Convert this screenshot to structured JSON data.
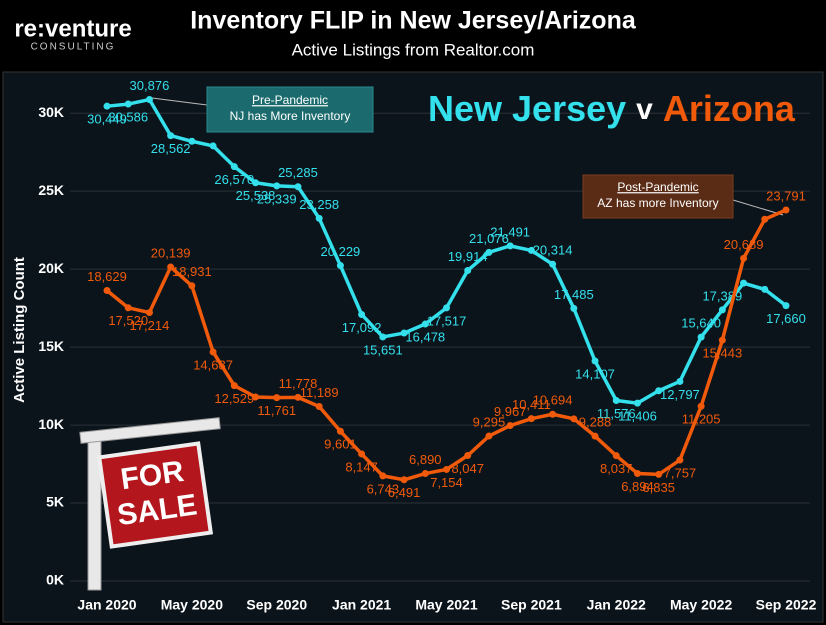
{
  "logo": {
    "name": "re:venture",
    "tagline": "CONSULTING"
  },
  "sign": [
    "FOR",
    "SALE"
  ],
  "chart_data": {
    "type": "line",
    "title": "Inventory FLIP in New Jersey/Arizona",
    "subtitle": "Active Listings from Realtor.com",
    "ylabel": "Active Listing Count",
    "legend_joiner": "v",
    "categories": [
      "Jan 2020",
      null,
      null,
      null,
      "May 2020",
      null,
      null,
      null,
      "Sep 2020",
      null,
      null,
      null,
      "Jan 2021",
      null,
      null,
      null,
      "May 2021",
      null,
      null,
      null,
      "Sep 2021",
      null,
      null,
      null,
      "Jan 2022",
      null,
      null,
      null,
      "May 2022",
      null,
      null,
      null,
      "Sep 2022"
    ],
    "ylim": [
      0,
      32000
    ],
    "yticks": [
      {
        "value": 0,
        "label": "0K"
      },
      {
        "value": 5000,
        "label": "5K"
      },
      {
        "value": 10000,
        "label": "10K"
      },
      {
        "value": 15000,
        "label": "15K"
      },
      {
        "value": 20000,
        "label": "20K"
      },
      {
        "value": 25000,
        "label": "25K"
      },
      {
        "value": 30000,
        "label": "30K"
      }
    ],
    "grid": true,
    "series": [
      {
        "name": "New Jersey",
        "color": "#33e0ec",
        "values": [
          30449,
          30586,
          30876,
          28562,
          28200,
          27900,
          26570,
          25538,
          25339,
          25285,
          23258,
          20229,
          17092,
          15651,
          15900,
          16478,
          17517,
          19914,
          21076,
          21491,
          21200,
          20314,
          17485,
          14107,
          11576,
          11406,
          12200,
          12797,
          15640,
          17389,
          19100,
          18700,
          17660
        ],
        "value_labels": [
          "30,449",
          "30,586",
          "30,876",
          "28,562",
          null,
          null,
          "26,570",
          "25,538",
          "25,339",
          "25,285",
          "23,258",
          "20,229",
          "17,092",
          "15,651",
          null,
          "16,478",
          "17,517",
          "19,914",
          "21,076",
          "21,491",
          null,
          "20,314",
          "17,485",
          "14,107",
          "11,576",
          "11,406",
          null,
          "12,797",
          "15,640",
          "17,389",
          null,
          null,
          "17,660"
        ]
      },
      {
        "name": "Arizona",
        "color": "#f05a0a",
        "values": [
          18629,
          17520,
          17214,
          20139,
          18931,
          14687,
          12529,
          11800,
          11761,
          11778,
          11189,
          9601,
          8147,
          6743,
          6491,
          6890,
          7154,
          8047,
          9295,
          9967,
          10411,
          10694,
          10400,
          9288,
          8037,
          6894,
          6835,
          7757,
          11205,
          15443,
          20689,
          23200,
          23791
        ],
        "value_labels": [
          "18,629",
          "17,520",
          "17,214",
          "20,139",
          "18,931",
          "14,687",
          "12,529",
          null,
          "11,761",
          "11,778",
          "11,189",
          "9,601",
          "8,147",
          "6,743",
          "6,491",
          "6,890",
          "7,154",
          "8,047",
          "9,295",
          "9,967",
          "10,411",
          "10,694",
          null,
          "9,288",
          "8,037",
          "6,894",
          "6,835",
          "7,757",
          "11,205",
          "15,443",
          "20,689",
          null,
          "23,791"
        ]
      }
    ],
    "annotations": [
      {
        "title": "Pre-Pandemic",
        "text": "NJ has More Inventory"
      },
      {
        "title": "Post-Pandemic",
        "text": "AZ has more Inventory"
      }
    ]
  }
}
